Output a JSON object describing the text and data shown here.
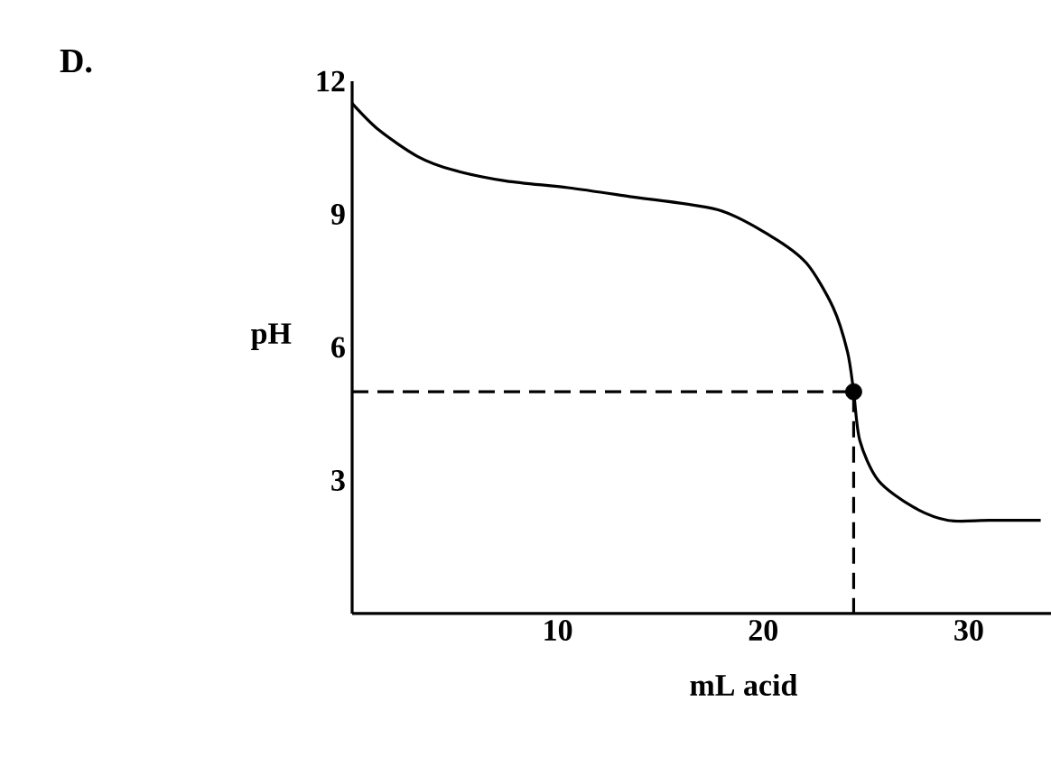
{
  "chart_data": {
    "type": "line",
    "title": "D.",
    "xlabel": "mL acid",
    "ylabel": "pH",
    "xlim": [
      0,
      34
    ],
    "ylim": [
      0,
      12
    ],
    "xticks": [
      10,
      20,
      30
    ],
    "yticks": [
      3,
      6,
      9,
      12
    ],
    "grid": false,
    "series": [
      {
        "color": "#000000",
        "line_style": "solid",
        "marker": "none",
        "x": [
          0,
          1.3,
          3.2,
          4.9,
          7.5,
          10.5,
          13.5,
          17.8,
          20.4,
          22.1,
          23.4,
          24.1,
          24.4,
          24.7,
          25.6,
          27.3,
          29,
          31,
          33.5
        ],
        "values": [
          11.5,
          10.9,
          10.3,
          10.0,
          9.75,
          9.6,
          9.4,
          9.1,
          8.5,
          7.9,
          6.9,
          5.9,
          5.0,
          3.9,
          3.0,
          2.4,
          2.1,
          2.1,
          2.1
        ]
      },
      {
        "color": "#000000",
        "line_style": "dashed",
        "marker": "none",
        "x": [
          0,
          24.4,
          24.4
        ],
        "values": [
          5.0,
          5.0,
          0
        ]
      },
      {
        "type": "scatter",
        "color": "#000000",
        "marker": "circle",
        "x": [
          24.4
        ],
        "values": [
          5.0
        ]
      }
    ]
  }
}
